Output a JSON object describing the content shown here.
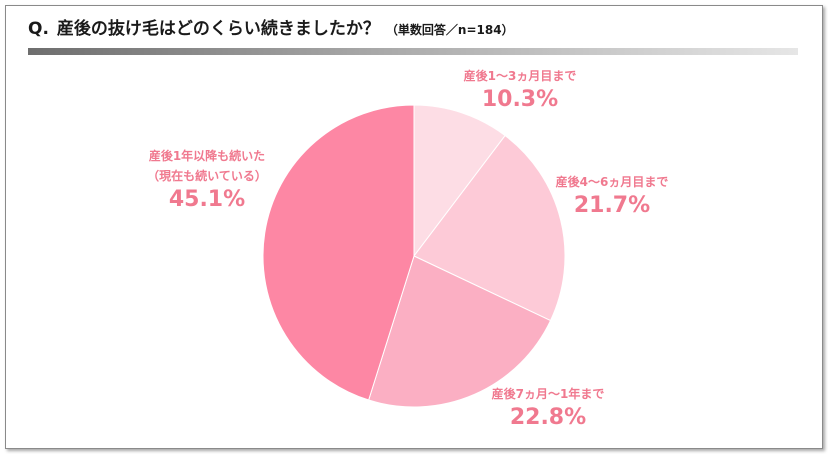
{
  "title": {
    "q": "Q.",
    "text": "産後の抜け毛はどのくらい続きましたか？",
    "sub": "（単数回答／n=184）"
  },
  "chart_data": {
    "type": "pie",
    "title": "産後の抜け毛はどのくらい続きましたか？",
    "n": 184,
    "slices": [
      {
        "label": "産後1〜3ヵ月目まで",
        "value": 10.3,
        "display": "10.3%",
        "color": "#fddde5"
      },
      {
        "label": "産後4〜6ヵ月目まで",
        "value": 21.7,
        "display": "21.7%",
        "color": "#fdcad7"
      },
      {
        "label": "産後7ヵ月〜1年まで",
        "value": 22.8,
        "display": "22.8%",
        "color": "#fbafc3"
      },
      {
        "label": "産後1年以降も続いた",
        "label2": "（現在も続いている）",
        "value": 45.1,
        "display": "45.1%",
        "color": "#fd87a4"
      }
    ]
  }
}
